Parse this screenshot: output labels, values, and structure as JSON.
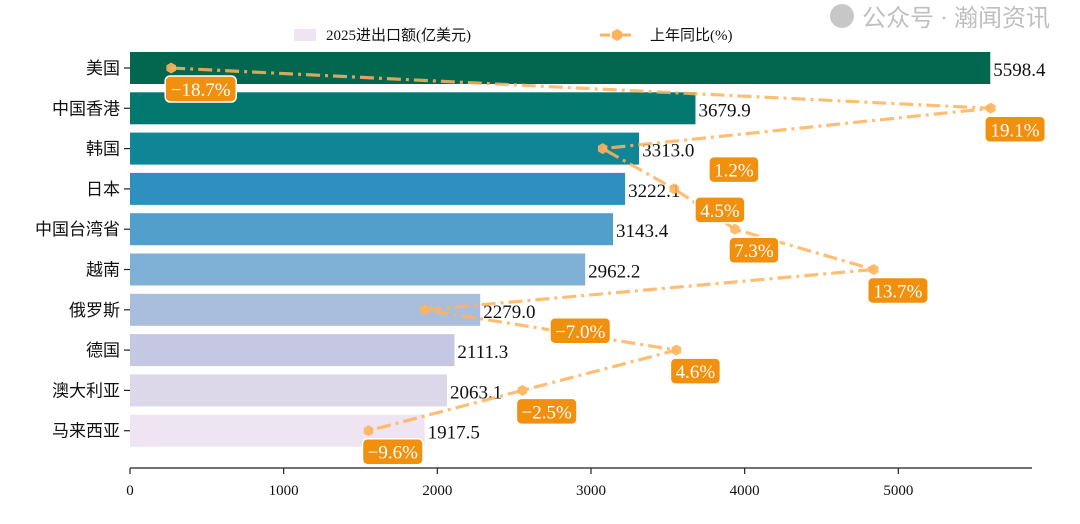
{
  "chart_data": {
    "type": "bar",
    "orientation": "horizontal",
    "categories": [
      "美国",
      "中国香港",
      "韩国",
      "日本",
      "中国台湾省",
      "越南",
      "俄罗斯",
      "德国",
      "澳大利亚",
      "马来西亚"
    ],
    "series": [
      {
        "name": "2025进出口额(亿美元)",
        "type": "bar",
        "values": [
          5598.4,
          3679.9,
          3313.0,
          3222.1,
          3143.4,
          2962.2,
          2279.0,
          2111.3,
          2063.1,
          1917.5
        ],
        "colors": [
          "#03664f",
          "#03786f",
          "#0f8596",
          "#2f8fbf",
          "#529fcb",
          "#7eb1d5",
          "#a9bddc",
          "#c5c8e2",
          "#dcd8ea",
          "#efe4f1"
        ]
      },
      {
        "name": "上年同比(%)",
        "type": "line",
        "values": [
          -18.7,
          19.1,
          1.2,
          4.5,
          7.3,
          13.7,
          -7.0,
          4.6,
          -2.5,
          -9.6
        ],
        "color": "#ffb35c",
        "label_color": "#f0900e"
      }
    ],
    "xticks": [
      "0",
      "1000",
      "2000",
      "3000",
      "4000",
      "5000"
    ],
    "xlim": [
      0,
      5870
    ],
    "line_xlim": [
      -20.6,
      21.0
    ],
    "legend": "top",
    "grid": false,
    "xlabel": "",
    "ylabel": ""
  },
  "watermark": "公众号 · 瀚闻资讯"
}
